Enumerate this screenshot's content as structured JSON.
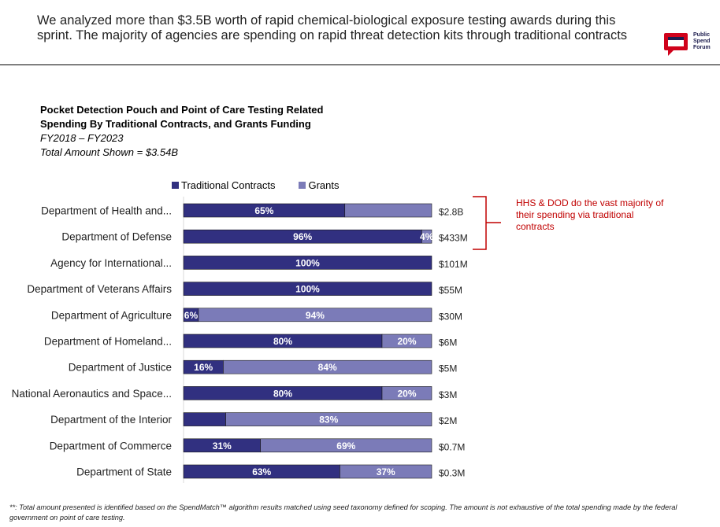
{
  "headline": "We analyzed more than $3.5B worth of rapid chemical-biological exposure testing awards during this sprint. The majority of agencies are spending on rapid threat detection kits through traditional contracts",
  "logo": {
    "lines": [
      "Public",
      "Spend",
      "Forum"
    ],
    "icon": "speech-bubble-icon",
    "colors": {
      "red": "#d0021b",
      "navy": "#1d1d4e"
    }
  },
  "chart_data": {
    "type": "bar",
    "orientation": "horizontal",
    "stacked": "100%",
    "title_line1": "Pocket Detection Pouch and Point of Care Testing Related",
    "title_line2": "Spending By Traditional Contracts, and Grants Funding",
    "subtitle_line1": "FY2018 – FY2023",
    "subtitle_line2": "Total Amount Shown = $3.54B",
    "legend_position": "top",
    "categories": [
      "Department of Health and...",
      "Department of Defense",
      "Agency for International...",
      "Department of Veterans Affairs",
      "Department of Agriculture",
      "Department of Homeland...",
      "Department of Justice",
      "National Aeronautics and Space...",
      "Department of the Interior",
      "Department of Commerce",
      "Department of State"
    ],
    "series": [
      {
        "name": "Traditional Contracts",
        "color": "#313080",
        "values": [
          65,
          96,
          100,
          100,
          6,
          80,
          16,
          80,
          17,
          31,
          63
        ],
        "labels": [
          "65%",
          "96%",
          "100%",
          "100%",
          "6%",
          "80%",
          "16%",
          "80%",
          "",
          "31%",
          "63%"
        ]
      },
      {
        "name": "Grants",
        "color": "#7b7bb8",
        "values": [
          35,
          4,
          0,
          0,
          94,
          20,
          84,
          20,
          83,
          69,
          37
        ],
        "labels": [
          "",
          "4%",
          "",
          "",
          "94%",
          "20%",
          "84%",
          "20%",
          "83%",
          "69%",
          "37%"
        ]
      }
    ],
    "totals": [
      "$2.8B",
      "$433M",
      "$101M",
      "$55M",
      "$30M",
      "$6M",
      "$5M",
      "$3M",
      "$2M",
      "$0.7M",
      "$0.3M"
    ],
    "xlim": [
      0,
      100
    ]
  },
  "annotation": "HHS & DOD do the vast majority of their spending via traditional contracts",
  "footnote": "**: Total amount presented is identified based on the SpendMatch™ algorithm results matched using seed taxonomy defined for scoping. The amount is not exhaustive of the total spending made by the federal government on point of care testing."
}
